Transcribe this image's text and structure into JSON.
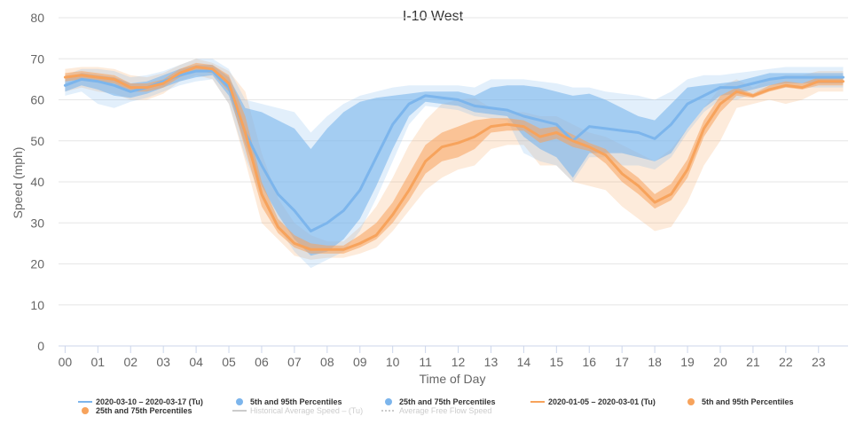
{
  "chart_data": {
    "type": "line",
    "title": "I-10 West",
    "xlabel": "Time of Day",
    "ylabel": "Speed (mph)",
    "xlim": [
      0,
      23.9
    ],
    "ylim": [
      0,
      80
    ],
    "x_ticks": [
      "00",
      "01",
      "02",
      "03",
      "04",
      "05",
      "06",
      "07",
      "08",
      "09",
      "10",
      "11",
      "12",
      "13",
      "14",
      "15",
      "16",
      "17",
      "18",
      "19",
      "20",
      "21",
      "22",
      "23"
    ],
    "y_ticks": [
      0,
      10,
      20,
      30,
      40,
      50,
      60,
      70,
      80
    ],
    "grid": true,
    "legend_position": "bottom",
    "x": [
      0,
      0.5,
      1,
      1.5,
      2,
      2.5,
      3,
      3.5,
      4,
      4.5,
      5,
      5.5,
      6,
      6.5,
      7,
      7.5,
      8,
      8.5,
      9,
      9.5,
      10,
      10.5,
      11,
      11.5,
      12,
      12.5,
      13,
      13.5,
      14,
      14.5,
      15,
      15.5,
      16,
      16.5,
      17,
      17.5,
      18,
      18.5,
      19,
      19.5,
      20,
      20.5,
      21,
      21.5,
      22,
      22.5,
      23,
      23.75
    ],
    "series": [
      {
        "name": "2020-03-10 – 2020-03-17 (Tu)",
        "color": "#7cb5ec",
        "values": [
          63.5,
          65,
          64.5,
          63.5,
          62,
          63,
          64.5,
          66,
          67,
          67,
          63,
          52,
          44,
          37,
          33,
          28,
          30,
          33,
          38,
          46,
          54,
          59,
          61,
          60.5,
          60,
          58.5,
          58,
          57.5,
          56,
          55,
          54,
          50,
          53.5,
          53,
          52.5,
          52,
          50.5,
          54,
          59,
          61,
          63,
          63,
          64,
          65,
          65.5,
          65.5,
          65.5,
          65.5
        ],
        "p25": [
          62,
          63.5,
          62.5,
          61,
          60.5,
          61.5,
          63,
          64.5,
          65.5,
          66,
          61,
          49,
          39,
          32,
          26,
          22,
          23,
          26,
          31,
          39,
          48,
          56,
          59.5,
          59,
          58.5,
          57,
          56.5,
          56,
          51,
          48,
          46,
          41,
          47,
          47,
          47,
          46,
          45,
          47,
          53,
          58,
          61,
          61.5,
          62.5,
          63.5,
          64,
          64,
          64,
          64
        ],
        "p75": [
          65,
          66.5,
          66,
          65.5,
          64,
          64.5,
          66,
          67.5,
          68.5,
          68.5,
          65.5,
          58,
          57,
          55,
          53,
          48,
          53,
          57,
          59.5,
          60.5,
          61,
          61.5,
          62,
          62,
          62,
          61,
          63,
          63.5,
          63.5,
          63,
          62,
          61,
          61.5,
          60,
          58,
          56,
          55,
          59,
          63,
          63.5,
          64,
          64.5,
          65.5,
          66.5,
          66.5,
          66.5,
          66.5,
          66.5
        ],
        "p5": [
          61,
          62,
          59,
          58,
          59.5,
          60.5,
          62,
          63.5,
          64.5,
          65,
          59,
          46,
          36,
          29,
          23,
          19,
          21,
          23,
          28,
          36,
          45,
          54,
          58.5,
          58,
          57.5,
          56,
          55.5,
          55,
          47,
          45,
          44,
          40,
          46,
          46,
          44,
          44,
          43,
          46,
          52,
          57,
          60,
          60,
          61.5,
          62.5,
          63,
          63,
          63,
          63
        ],
        "p95": [
          66,
          67.5,
          67.5,
          67,
          65.5,
          66,
          67,
          68.5,
          70,
          70,
          67.5,
          60,
          59,
          58,
          57,
          52,
          56,
          59,
          61,
          62,
          63,
          63.5,
          63.5,
          63.5,
          63.5,
          63,
          65,
          65,
          65,
          64.5,
          64,
          63,
          63,
          62,
          61.5,
          61,
          60,
          62,
          65,
          66,
          66,
          66.5,
          67,
          67.5,
          68,
          68,
          68,
          68
        ]
      },
      {
        "name": "2020-01-05 – 2020-03-01 (Tu)",
        "color": "#f7a35c",
        "values": [
          65.5,
          66,
          65.5,
          65,
          63,
          63,
          64,
          66.5,
          68,
          67.5,
          64,
          52,
          37,
          29,
          25,
          23.5,
          23.5,
          23.5,
          25,
          27,
          32,
          38,
          45,
          48.5,
          49.5,
          51,
          53.5,
          54,
          53.5,
          51,
          52,
          50,
          48.5,
          46.5,
          42,
          39,
          35,
          37,
          43,
          53,
          59,
          62,
          61,
          62.5,
          63.5,
          63,
          64.5,
          64.5
        ],
        "p25": [
          64.5,
          65,
          64.5,
          64,
          62,
          62,
          63,
          65.5,
          67,
          66.5,
          62,
          48,
          34,
          27.5,
          24,
          22.5,
          22.5,
          22.5,
          24,
          26,
          30,
          35.5,
          42,
          45,
          46,
          48,
          52,
          52.5,
          52.5,
          49.5,
          50.5,
          48.5,
          47.5,
          44.5,
          40,
          37,
          33.5,
          35.5,
          41,
          51,
          57,
          61,
          60.5,
          62,
          63,
          62.5,
          63.5,
          63.5
        ],
        "p75": [
          66.5,
          67,
          66.5,
          66,
          64,
          64,
          65,
          67.5,
          69,
          68.5,
          66,
          56,
          40,
          31,
          27,
          25,
          24.5,
          24.5,
          27,
          30,
          35,
          42,
          49,
          52,
          53.5,
          55,
          55.5,
          55.5,
          55,
          53,
          53.5,
          51.5,
          49.5,
          48,
          44,
          41,
          37,
          39.5,
          45.5,
          55,
          61,
          63,
          61.5,
          63.5,
          64.5,
          64,
          65.5,
          65.5
        ],
        "p5": [
          62,
          63,
          62,
          61.5,
          60,
          60,
          61.5,
          64.5,
          66,
          65,
          59,
          45,
          30,
          26,
          22,
          21,
          21.5,
          21.5,
          22.5,
          24,
          28,
          33,
          38,
          41,
          43,
          44,
          48,
          49,
          49,
          44,
          44,
          40,
          39,
          38,
          34,
          31,
          28,
          29,
          35,
          44,
          50,
          58,
          59,
          60,
          59,
          60,
          62,
          62
        ],
        "p95": [
          67.5,
          68,
          68,
          67.5,
          66,
          65.5,
          66.5,
          68.5,
          70,
          69,
          67,
          62,
          47,
          36,
          30,
          27,
          25.5,
          25.5,
          29,
          34,
          41,
          49,
          55,
          59,
          60,
          60.5,
          58,
          57,
          57,
          56,
          56,
          54,
          52,
          51,
          49,
          47,
          45,
          48,
          53,
          58,
          63,
          65,
          63,
          65,
          66,
          66,
          67,
          67
        ]
      }
    ],
    "legend": [
      {
        "label": "2020-03-10 – 2020-03-17 (Tu)",
        "symbol": "line",
        "color": "#7cb5ec",
        "hidden": false
      },
      {
        "label": "5th and 95th Percentiles",
        "symbol": "dot",
        "color": "#7cb5ec",
        "hidden": false
      },
      {
        "label": "25th and 75th Percentiles",
        "symbol": "dot",
        "color": "#7cb5ec",
        "hidden": false
      },
      {
        "label": "2020-01-05 – 2020-03-01 (Tu)",
        "symbol": "line",
        "color": "#f7a35c",
        "hidden": false
      },
      {
        "label": "5th and 95th Percentiles",
        "symbol": "dot",
        "color": "#f7a35c",
        "hidden": false
      },
      {
        "label": "25th and 75th Percentiles",
        "symbol": "dot",
        "color": "#f7a35c",
        "hidden": false
      },
      {
        "label": "Historical Average Speed – (Tu)",
        "symbol": "line",
        "color": "#cccccc",
        "hidden": true
      },
      {
        "label": "Average Free Flow Speed",
        "symbol": "dotted",
        "color": "#cccccc",
        "hidden": true
      }
    ]
  }
}
